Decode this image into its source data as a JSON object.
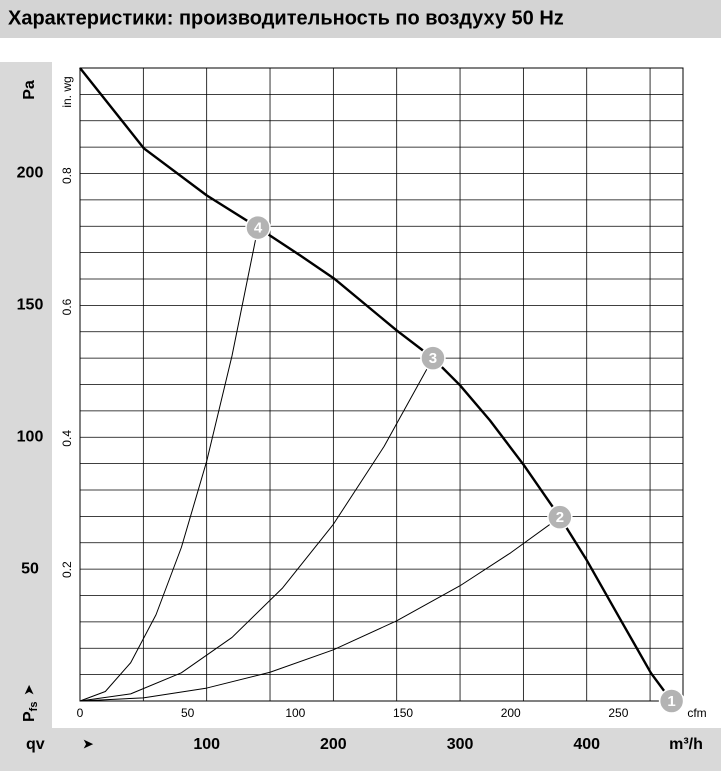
{
  "chart_data": {
    "type": "line",
    "title": "Характеристики: производительность по воздуху 50 Hz",
    "x_label": "qv",
    "x_unit": "m³/h",
    "x2_unit": "cfm",
    "y_label": {
      "symbol": "P",
      "subscript": "fs"
    },
    "y_unit": "Pa",
    "y2_unit": "in. wg",
    "xlim": [
      0,
      476
    ],
    "xticks": [
      100,
      200,
      300,
      400
    ],
    "x2lim": [
      0,
      280
    ],
    "x2ticks": [
      0,
      50,
      100,
      150,
      200,
      250
    ],
    "ylim": [
      0,
      240
    ],
    "yticks": [
      50,
      100,
      150,
      200
    ],
    "y2lim": [
      0,
      0.964
    ],
    "y2ticks": [
      0.2,
      0.4,
      0.6,
      0.8
    ],
    "grid": true,
    "x_grid": [
      50,
      100,
      150,
      200,
      250,
      300,
      350,
      400,
      450
    ],
    "y_grid": [
      10,
      20,
      30,
      40,
      50,
      60,
      70,
      80,
      90,
      100,
      110,
      120,
      130,
      140,
      150,
      160,
      170,
      180,
      190,
      200,
      210,
      220,
      230
    ],
    "series": [
      {
        "color": "#000000",
        "width": 2.4,
        "x": [
          0,
          50.5,
          100,
          140.5,
          173.6,
          200.5,
          250,
          278.6,
          300,
          323.6,
          350.4,
          378.8,
          400,
          426,
          450.7,
          467
        ],
        "values": [
          240,
          209.5,
          191.7,
          179.5,
          169,
          160.2,
          140.5,
          130,
          119.7,
          106.4,
          89.4,
          69.7,
          53.4,
          31.4,
          10.6,
          0
        ]
      },
      {
        "color": "#000000",
        "width": 1,
        "x": [
          0,
          20,
          40,
          60,
          80,
          100,
          120,
          140.5
        ],
        "values": [
          0,
          3.6,
          14.5,
          32.7,
          58.2,
          90.9,
          130.9,
          179.5
        ]
      },
      {
        "color": "#000000",
        "width": 1,
        "x": [
          0,
          40,
          80,
          120,
          160,
          200,
          240,
          278.6
        ],
        "values": [
          0,
          2.7,
          10.7,
          24.1,
          42.9,
          67,
          96.5,
          130
        ]
      },
      {
        "color": "#000000",
        "width": 1,
        "x": [
          0,
          50,
          100,
          150,
          200,
          250,
          300,
          340,
          378.8
        ],
        "values": [
          0,
          1.2,
          4.9,
          10.9,
          19.4,
          30.4,
          43.7,
          56.2,
          69.7
        ]
      }
    ],
    "points": [
      {
        "label": "1",
        "x": 467,
        "y": 0
      },
      {
        "label": "2",
        "x": 378.8,
        "y": 69.7
      },
      {
        "label": "3",
        "x": 278.6,
        "y": 130
      },
      {
        "label": "4",
        "x": 140.5,
        "y": 179.5
      }
    ],
    "point_color": "#b3b3b3"
  }
}
